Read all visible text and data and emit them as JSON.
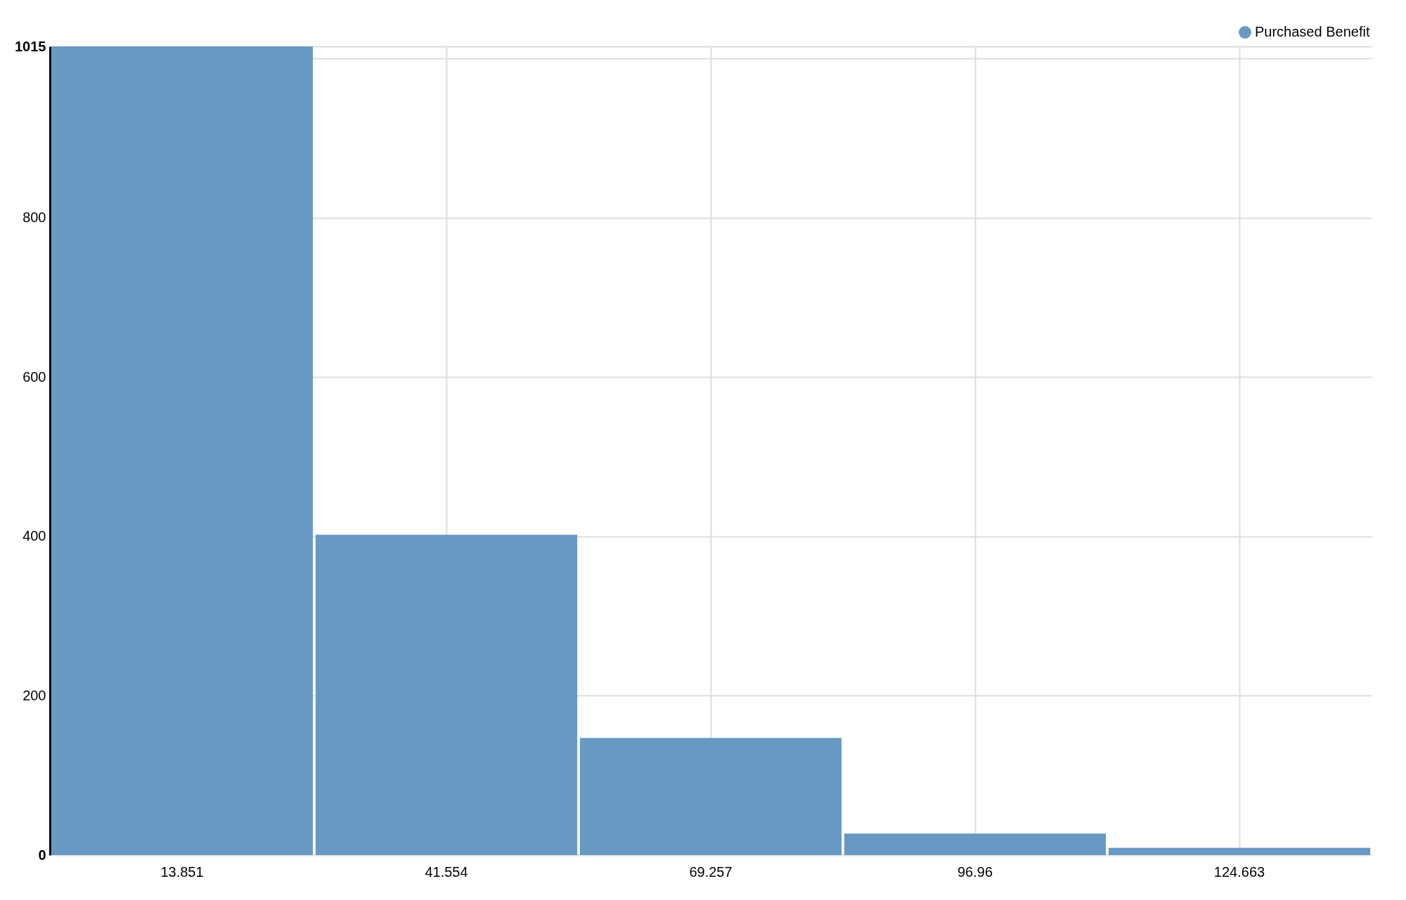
{
  "chart_data": {
    "type": "bar",
    "categories": [
      "13.851",
      "41.554",
      "69.257",
      "96.96",
      "124.663"
    ],
    "series": [
      {
        "name": "Purchased Benefit",
        "color": "#6899c4",
        "values": [
          1015,
          402,
          147,
          27,
          9
        ]
      }
    ],
    "ylim": [
      0,
      1015
    ],
    "yticks": [
      0,
      200,
      400,
      600,
      800,
      {
        "value": 1000,
        "label": null
      },
      1015
    ],
    "grid": true,
    "legend": "top right"
  }
}
